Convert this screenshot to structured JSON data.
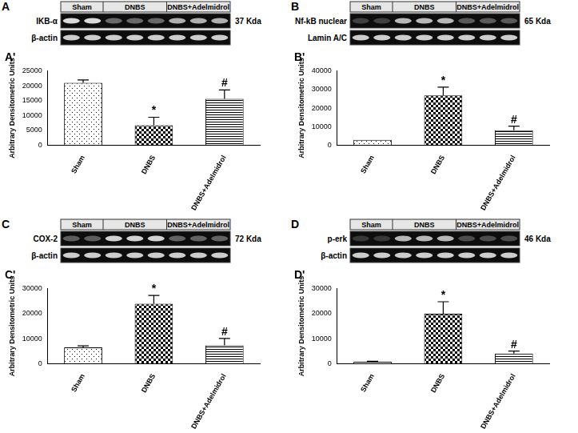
{
  "chart_data": [
    {
      "type": "bar",
      "title": "A'",
      "y_label": "Arbitrary Densitometric Units",
      "categories": [
        "Sham",
        "DNBS",
        "DNBS+Adelmidrol"
      ],
      "values": [
        21000,
        6700,
        15600
      ],
      "errors": [
        1000,
        2700,
        3000
      ],
      "annotations": [
        null,
        "*",
        "#"
      ],
      "color": "#000000",
      "ylim": [
        0,
        25000
      ],
      "yticks": [
        0,
        5000,
        10000,
        15000,
        20000,
        25000
      ],
      "grid": false
    },
    {
      "type": "bar",
      "title": "B'",
      "y_label": "Arbitrary Densitometric Units",
      "categories": [
        "Sham",
        "DNBS",
        "DNBS+Adelmidrol"
      ],
      "values": [
        2800,
        26800,
        8000
      ],
      "errors": [
        0,
        4500,
        2200
      ],
      "annotations": [
        null,
        "*",
        "#"
      ],
      "color": "#000000",
      "ylim": [
        0,
        40000
      ],
      "yticks": [
        0,
        10000,
        20000,
        30000,
        40000
      ],
      "grid": false
    },
    {
      "type": "bar",
      "title": "C'",
      "y_label": "Arbitrary Densitometric Units",
      "categories": [
        "Sham",
        "DNBS",
        "DNBS+Adelmidrol"
      ],
      "values": [
        6500,
        24000,
        7300
      ],
      "errors": [
        600,
        3300,
        2800
      ],
      "annotations": [
        null,
        "*",
        "#"
      ],
      "color": "#000000",
      "ylim": [
        0,
        30000
      ],
      "yticks": [
        0,
        10000,
        20000,
        30000
      ],
      "grid": false
    },
    {
      "type": "bar",
      "title": "D'",
      "y_label": "Arbitrary Densitometric Units",
      "categories": [
        "Sham",
        "DNBS",
        "DNBS+Adelmidrol"
      ],
      "values": [
        700,
        20000,
        4000
      ],
      "errors": [
        200,
        4800,
        1000
      ],
      "annotations": [
        null,
        "*",
        "#"
      ],
      "color": "#000000",
      "ylim": [
        0,
        30000
      ],
      "yticks": [
        0,
        10000,
        20000,
        30000
      ],
      "grid": false
    }
  ],
  "blots": [
    {
      "panel": "A",
      "groups": [
        "Sham",
        "DNBS",
        "DNBS+Adelmidrol"
      ],
      "rows": [
        "IKB-α",
        "β-actin"
      ],
      "size": "37 Kda"
    },
    {
      "panel": "B",
      "groups": [
        "Sham",
        "DNBS",
        "DNBS+Adelmidrol"
      ],
      "rows": [
        "Nf-kB nuclear",
        "Lamin A/C"
      ],
      "size": "65 Kda"
    },
    {
      "panel": "C",
      "groups": [
        "Sham",
        "DNBS",
        "DNBS+Adelmidrol"
      ],
      "rows": [
        "COX-2",
        "β-actin"
      ],
      "size": "72 Kda"
    },
    {
      "panel": "D",
      "groups": [
        "Sham",
        "DNBS",
        "DNBS+Adelmidrol"
      ],
      "rows": [
        "p-erk",
        "β-actin"
      ],
      "size": "46 Kda"
    }
  ]
}
